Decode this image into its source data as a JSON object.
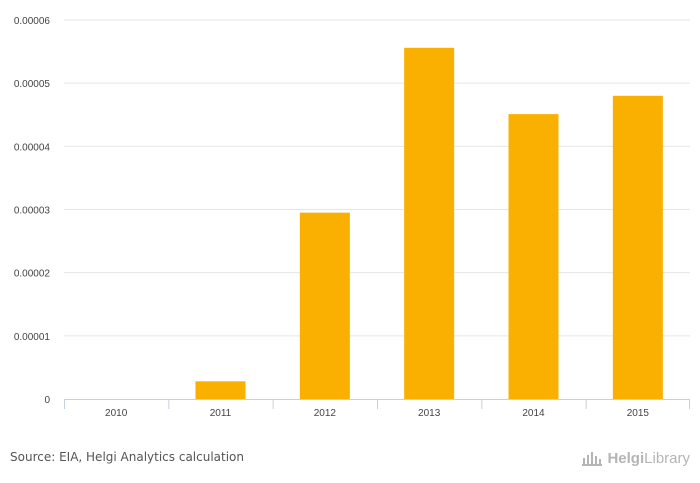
{
  "chart_data": {
    "type": "bar",
    "categories": [
      "2010",
      "2011",
      "2012",
      "2013",
      "2014",
      "2015"
    ],
    "values": [
      0,
      2.8e-06,
      2.95e-05,
      5.56e-05,
      4.51e-05,
      4.8e-05
    ],
    "title": "",
    "xlabel": "",
    "ylabel": "",
    "ylim": [
      0,
      6e-05
    ],
    "yticks": [
      0,
      1e-05,
      2e-05,
      3e-05,
      4e-05,
      5e-05,
      6e-05
    ],
    "ytick_labels": [
      "0",
      "0.00001",
      "0.00002",
      "0.00003",
      "0.00004",
      "0.00005",
      "0.00006"
    ],
    "grid": true,
    "bar_color": "#f9b000",
    "grid_color": "#e6e6e6"
  },
  "footer": {
    "source": "Source: EIA, Helgi Analytics calculation",
    "brand_part1": "Helgi",
    "brand_part2": "Library"
  }
}
